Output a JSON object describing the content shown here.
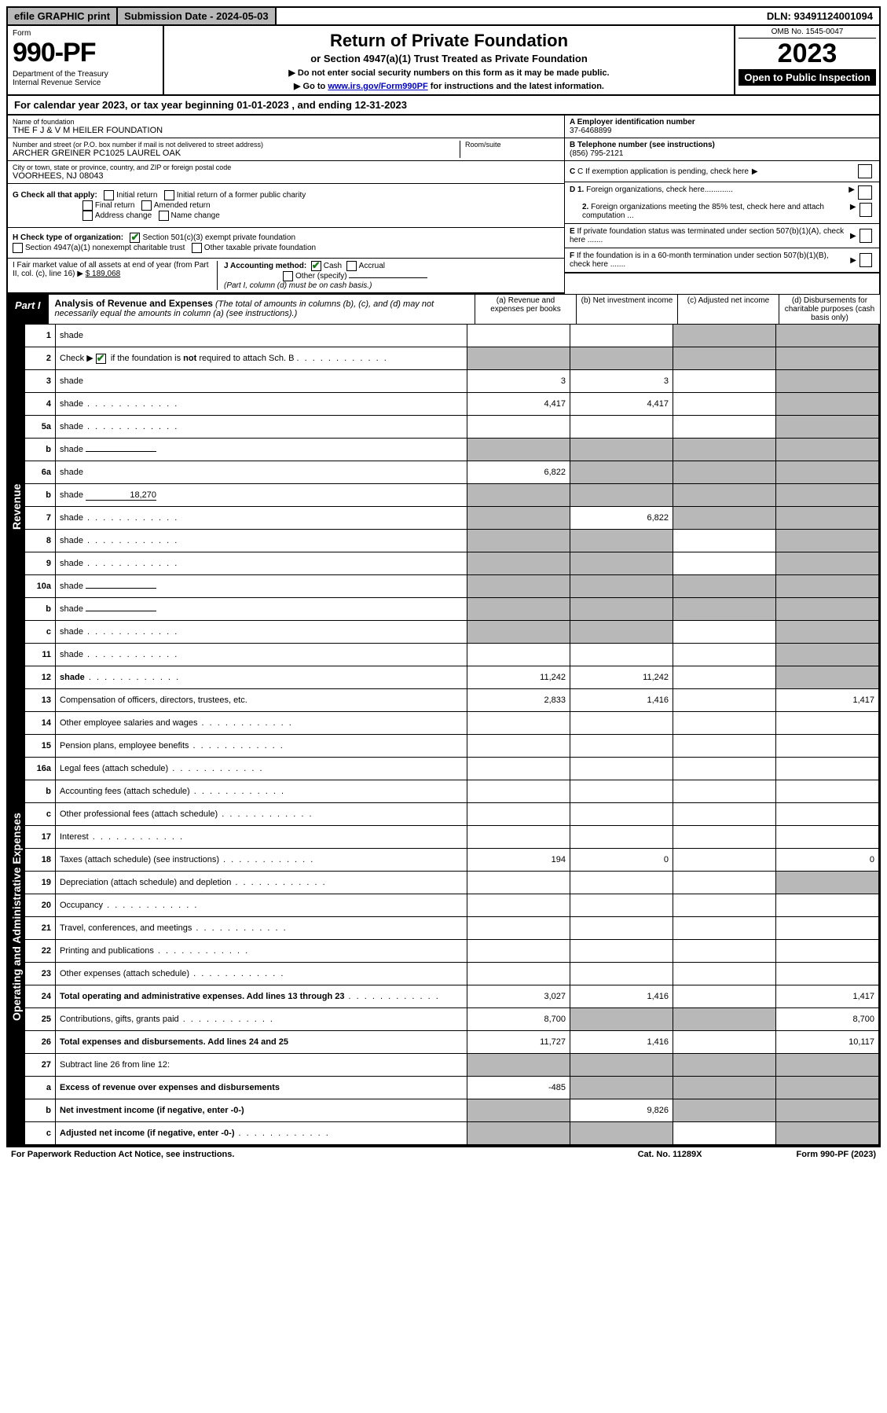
{
  "top": {
    "efile": "efile GRAPHIC print",
    "submission": "Submission Date - 2024-05-03",
    "dln": "DLN: 93491124001094"
  },
  "header": {
    "form_label": "Form",
    "form_no": "990-PF",
    "dept": "Department of the Treasury\nInternal Revenue Service",
    "title": "Return of Private Foundation",
    "subtitle": "or Section 4947(a)(1) Trust Treated as Private Foundation",
    "note1": "▶ Do not enter social security numbers on this form as it may be made public.",
    "note2_pre": "▶ Go to ",
    "note2_link": "www.irs.gov/Form990PF",
    "note2_post": " for instructions and the latest information.",
    "omb": "OMB No. 1545-0047",
    "year": "2023",
    "open": "Open to Public Inspection"
  },
  "calendar": "For calendar year 2023, or tax year beginning 01-01-2023                          , and ending 12-31-2023",
  "entity": {
    "name_lbl": "Name of foundation",
    "name": "THE F J & V M HEILER FOUNDATION",
    "addr_lbl": "Number and street (or P.O. box number if mail is not delivered to street address)",
    "addr": "ARCHER GREINER PC1025 LAUREL OAK",
    "room_lbl": "Room/suite",
    "city_lbl": "City or town, state or province, country, and ZIP or foreign postal code",
    "city": "VOORHEES, NJ  08043",
    "ein_lbl": "A Employer identification number",
    "ein": "37-6468899",
    "phone_lbl": "B Telephone number (see instructions)",
    "phone": "(856) 795-2121",
    "c": "C If exemption application is pending, check here",
    "d1": "D 1. Foreign organizations, check here.............",
    "d2": "2. Foreign organizations meeting the 85% test, check here and attach computation ...",
    "e": "E If private foundation status was terminated under section 507(b)(1)(A), check here .......",
    "f": "F If the foundation is in a 60-month termination under section 507(b)(1)(B), check here .......",
    "g_lbl": "G Check all that apply:",
    "g_opts": [
      "Initial return",
      "Initial return of a former public charity",
      "Final return",
      "Amended return",
      "Address change",
      "Name change"
    ],
    "h_lbl": "H Check type of organization:",
    "h1": "Section 501(c)(3) exempt private foundation",
    "h2": "Section 4947(a)(1) nonexempt charitable trust",
    "h3": "Other taxable private foundation",
    "i_lbl": "I Fair market value of all assets at end of year (from Part II, col. (c), line 16) ▶",
    "i_val": "$  189,068",
    "j_lbl": "J Accounting method:",
    "j_cash": "Cash",
    "j_accr": "Accrual",
    "j_other": "Other (specify)",
    "j_note": "(Part I, column (d) must be on cash basis.)"
  },
  "part1": {
    "tab": "Part I",
    "title": "Analysis of Revenue and Expenses",
    "note": " (The total of amounts in columns (b), (c), and (d) may not necessarily equal the amounts in column (a) (see instructions).)",
    "cols": {
      "a": "(a) Revenue and expenses per books",
      "b": "(b) Net investment income",
      "c": "(c) Adjusted net income",
      "d": "(d) Disbursements for charitable purposes (cash basis only)"
    }
  },
  "vtabs": {
    "rev": "Revenue",
    "exp": "Operating and Administrative Expenses"
  },
  "rows": [
    {
      "n": "1",
      "d": "shade",
      "a": "",
      "b": "",
      "c": "shade"
    },
    {
      "n": "2",
      "d": "shade",
      "dots": true,
      "a": "shade",
      "b": "shade",
      "c": "shade",
      "checkline": true
    },
    {
      "n": "3",
      "d": "shade",
      "a": "3",
      "b": "3",
      "c": ""
    },
    {
      "n": "4",
      "d": "shade",
      "dots": true,
      "a": "4,417",
      "b": "4,417",
      "c": ""
    },
    {
      "n": "5a",
      "d": "shade",
      "dots": true,
      "a": "",
      "b": "",
      "c": ""
    },
    {
      "n": "b",
      "d": "shade",
      "inline": true,
      "a": "shade",
      "b": "shade",
      "c": "shade"
    },
    {
      "n": "6a",
      "d": "shade",
      "a": "6,822",
      "b": "shade",
      "c": "shade"
    },
    {
      "n": "b",
      "d": "shade",
      "inline": true,
      "inlineval": "18,270",
      "a": "shade",
      "b": "shade",
      "c": "shade"
    },
    {
      "n": "7",
      "d": "shade",
      "dots": true,
      "a": "shade",
      "b": "6,822",
      "c": "shade"
    },
    {
      "n": "8",
      "d": "shade",
      "dots": true,
      "a": "shade",
      "b": "shade",
      "c": ""
    },
    {
      "n": "9",
      "d": "shade",
      "dots": true,
      "a": "shade",
      "b": "shade",
      "c": ""
    },
    {
      "n": "10a",
      "d": "shade",
      "inline": true,
      "a": "shade",
      "b": "shade",
      "c": "shade"
    },
    {
      "n": "b",
      "d": "shade",
      "dots": true,
      "inline": true,
      "a": "shade",
      "b": "shade",
      "c": "shade"
    },
    {
      "n": "c",
      "d": "shade",
      "dots": true,
      "a": "shade",
      "b": "shade",
      "c": ""
    },
    {
      "n": "11",
      "d": "shade",
      "dots": true,
      "a": "",
      "b": "",
      "c": ""
    },
    {
      "n": "12",
      "d": "shade",
      "dots": true,
      "bold": true,
      "a": "11,242",
      "b": "11,242",
      "c": ""
    }
  ],
  "exp_rows": [
    {
      "n": "13",
      "d": "Compensation of officers, directors, trustees, etc.",
      "a": "2,833",
      "b": "1,416",
      "c": "",
      "dd": "1,417"
    },
    {
      "n": "14",
      "d": "Other employee salaries and wages",
      "dots": true,
      "a": "",
      "b": "",
      "c": "",
      "dd": ""
    },
    {
      "n": "15",
      "d": "Pension plans, employee benefits",
      "dots": true,
      "a": "",
      "b": "",
      "c": "",
      "dd": ""
    },
    {
      "n": "16a",
      "d": "Legal fees (attach schedule)",
      "dots": true,
      "a": "",
      "b": "",
      "c": "",
      "dd": ""
    },
    {
      "n": "b",
      "d": "Accounting fees (attach schedule)",
      "dots": true,
      "a": "",
      "b": "",
      "c": "",
      "dd": ""
    },
    {
      "n": "c",
      "d": "Other professional fees (attach schedule)",
      "dots": true,
      "a": "",
      "b": "",
      "c": "",
      "dd": ""
    },
    {
      "n": "17",
      "d": "Interest",
      "dots": true,
      "a": "",
      "b": "",
      "c": "",
      "dd": ""
    },
    {
      "n": "18",
      "d": "Taxes (attach schedule) (see instructions)",
      "dots": true,
      "a": "194",
      "b": "0",
      "c": "",
      "dd": "0"
    },
    {
      "n": "19",
      "d": "Depreciation (attach schedule) and depletion",
      "dots": true,
      "a": "",
      "b": "",
      "c": "",
      "dd": "shade"
    },
    {
      "n": "20",
      "d": "Occupancy",
      "dots": true,
      "a": "",
      "b": "",
      "c": "",
      "dd": ""
    },
    {
      "n": "21",
      "d": "Travel, conferences, and meetings",
      "dots": true,
      "a": "",
      "b": "",
      "c": "",
      "dd": ""
    },
    {
      "n": "22",
      "d": "Printing and publications",
      "dots": true,
      "a": "",
      "b": "",
      "c": "",
      "dd": ""
    },
    {
      "n": "23",
      "d": "Other expenses (attach schedule)",
      "dots": true,
      "a": "",
      "b": "",
      "c": "",
      "dd": ""
    },
    {
      "n": "24",
      "d": "Total operating and administrative expenses. Add lines 13 through 23",
      "dots": true,
      "bold": true,
      "a": "3,027",
      "b": "1,416",
      "c": "",
      "dd": "1,417"
    },
    {
      "n": "25",
      "d": "Contributions, gifts, grants paid",
      "dots": true,
      "a": "8,700",
      "b": "shade",
      "c": "shade",
      "dd": "8,700"
    },
    {
      "n": "26",
      "d": "Total expenses and disbursements. Add lines 24 and 25",
      "bold": true,
      "a": "11,727",
      "b": "1,416",
      "c": "",
      "dd": "10,117"
    },
    {
      "n": "27",
      "d": "Subtract line 26 from line 12:",
      "a": "shade",
      "b": "shade",
      "c": "shade",
      "dd": "shade"
    },
    {
      "n": "a",
      "d": "Excess of revenue over expenses and disbursements",
      "bold": true,
      "a": "-485",
      "b": "shade",
      "c": "shade",
      "dd": "shade"
    },
    {
      "n": "b",
      "d": "Net investment income (if negative, enter -0-)",
      "bold": true,
      "a": "shade",
      "b": "9,826",
      "c": "shade",
      "dd": "shade"
    },
    {
      "n": "c",
      "d": "Adjusted net income (if negative, enter -0-)",
      "dots": true,
      "bold": true,
      "a": "shade",
      "b": "shade",
      "c": "",
      "dd": "shade"
    }
  ],
  "footer": {
    "left": "For Paperwork Reduction Act Notice, see instructions.",
    "mid": "Cat. No. 11289X",
    "right": "Form 990-PF (2023)"
  },
  "colors": {
    "shade": "#b8b8b8",
    "link": "#0000cc",
    "check": "#1a7a1a"
  }
}
